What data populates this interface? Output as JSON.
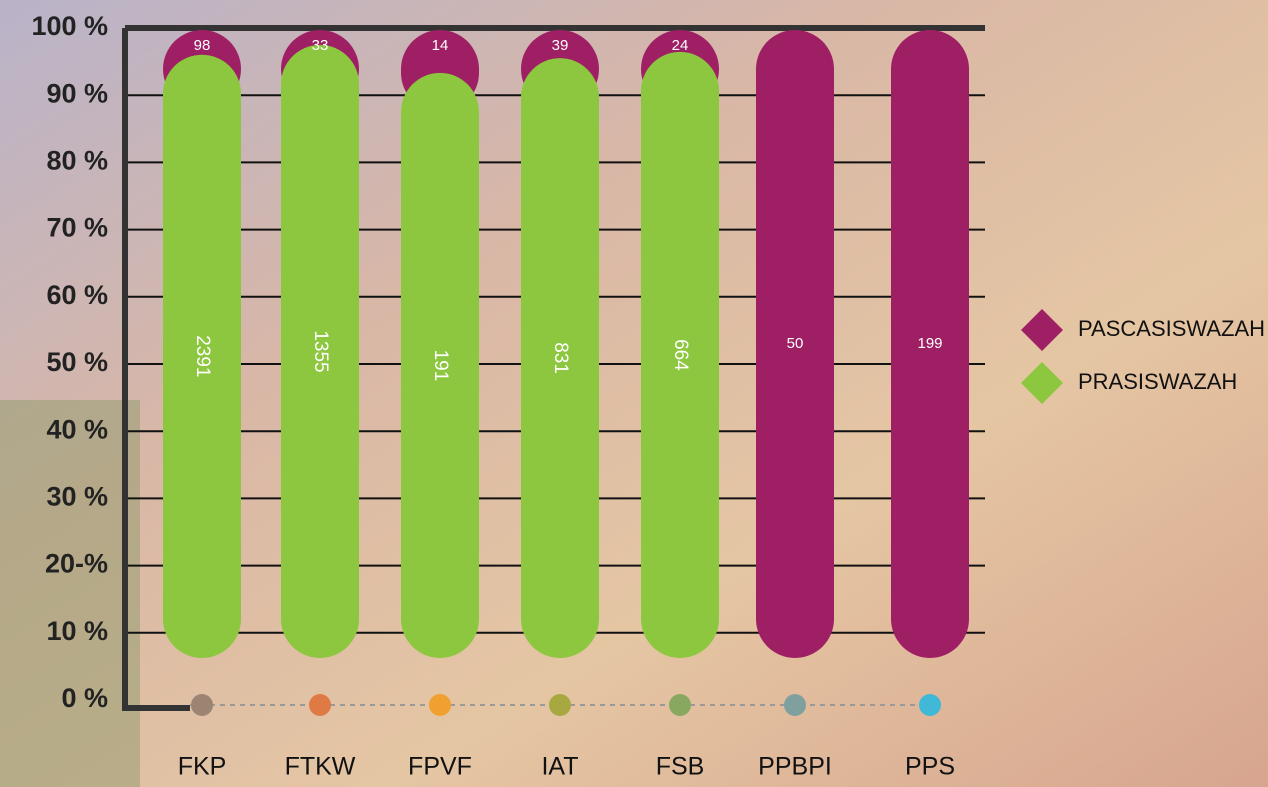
{
  "chart_data": {
    "type": "bar",
    "stacked": "percent",
    "categories": [
      "FKP",
      "FTKW",
      "FPVF",
      "IAT",
      "FSB",
      "PPBPI",
      "PPS"
    ],
    "category_colors": [
      "#9b8572",
      "#e07a45",
      "#f0a030",
      "#a8a840",
      "#88a860",
      "#80a0a0",
      "#40b8d8"
    ],
    "series": [
      {
        "name": "PRASISWAZAH",
        "color": "#8dc63f",
        "values": [
          2391,
          1355,
          191,
          831,
          664,
          null,
          null
        ]
      },
      {
        "name": "PASCASISWAZAH",
        "color": "#9e1f63",
        "values": [
          98,
          33,
          14,
          39,
          24,
          50,
          199
        ]
      }
    ],
    "ylim": [
      0,
      100
    ],
    "yticks": [
      {
        "value": 0,
        "label": "0 %"
      },
      {
        "value": 10,
        "label": "10 %"
      },
      {
        "value": 20,
        "label": "20-%"
      },
      {
        "value": 30,
        "label": "30 %"
      },
      {
        "value": 40,
        "label": "40 %"
      },
      {
        "value": 50,
        "label": "50 %"
      },
      {
        "value": 60,
        "label": "60 %"
      },
      {
        "value": 70,
        "label": "70 %"
      },
      {
        "value": 80,
        "label": "80 %"
      },
      {
        "value": 90,
        "label": "90 %"
      },
      {
        "value": 100,
        "label": "100 %"
      }
    ],
    "grid": true,
    "legend": "right"
  }
}
